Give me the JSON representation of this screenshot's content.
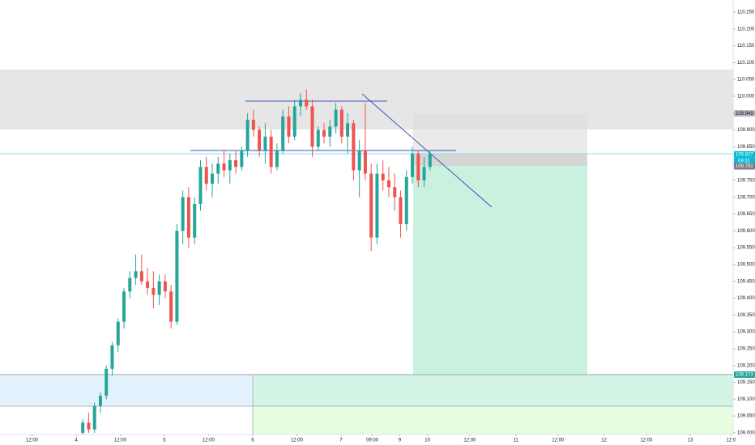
{
  "chart_data": {
    "type": "candlestick",
    "up_color": "#26a69a",
    "down_color": "#ef5350",
    "x": [
      1.8,
      3.4,
      5.0,
      6.6,
      8.2,
      9.8,
      11.4,
      13.0,
      14.6,
      16.2,
      17.8,
      19.4,
      21.0,
      22.6,
      24.2,
      25.8,
      27.4,
      29.0,
      30.6,
      32.2,
      33.8,
      35.4,
      37.0,
      38.6,
      40.2,
      41.8,
      43.4,
      45.0,
      46.6,
      48.2,
      49.8,
      51.4,
      53.0,
      54.6,
      56.2,
      57.8,
      59.4,
      61.0,
      62.6,
      64.2,
      65.8,
      67.4,
      69.0,
      70.6,
      72.2,
      73.8,
      75.4,
      77.0,
      78.6,
      80.2,
      81.8,
      83.4,
      85.0,
      86.6,
      88.2,
      89.8,
      91.4,
      93.0,
      94.6,
      96.2
    ],
    "open": [
      109.0,
      109.03,
      109.01,
      109.08,
      109.11,
      109.19,
      109.26,
      109.33,
      109.42,
      109.46,
      109.48,
      109.45,
      109.43,
      109.41,
      109.45,
      109.42,
      109.33,
      109.6,
      109.7,
      109.58,
      109.68,
      109.79,
      109.74,
      109.77,
      109.8,
      109.78,
      109.81,
      109.79,
      109.84,
      109.93,
      109.9,
      109.84,
      109.88,
      109.79,
      109.84,
      109.94,
      109.88,
      109.97,
      109.99,
      109.97,
      109.85,
      109.9,
      109.88,
      109.91,
      109.96,
      109.88,
      109.92,
      109.78,
      109.84,
      109.77,
      109.58,
      109.77,
      109.75,
      109.73,
      109.7,
      109.62,
      109.76,
      109.83,
      109.75,
      109.79
    ],
    "high": [
      109.04,
      109.06,
      109.09,
      109.12,
      109.2,
      109.27,
      109.34,
      109.43,
      109.48,
      109.53,
      109.53,
      109.49,
      109.48,
      109.47,
      109.47,
      109.44,
      109.62,
      109.72,
      109.73,
      109.7,
      109.81,
      109.82,
      109.8,
      109.82,
      109.84,
      109.83,
      109.84,
      109.85,
      109.95,
      109.96,
      109.91,
      109.92,
      109.9,
      109.86,
      109.96,
      109.97,
      109.99,
      110.01,
      110.02,
      109.99,
      109.91,
      109.92,
      109.93,
      109.98,
      109.97,
      109.95,
      109.93,
      109.87,
      109.98,
      109.8,
      109.8,
      109.81,
      109.79,
      109.77,
      109.72,
      109.78,
      109.85,
      109.84,
      109.82,
      109.84
    ],
    "low": [
      108.995,
      109.0,
      109.0,
      109.06,
      109.1,
      109.17,
      109.24,
      109.31,
      109.4,
      109.44,
      109.44,
      109.41,
      109.37,
      109.38,
      109.4,
      109.31,
      109.32,
      109.56,
      109.55,
      109.56,
      109.66,
      109.72,
      109.7,
      109.74,
      109.76,
      109.74,
      109.77,
      109.78,
      109.82,
      109.88,
      109.82,
      109.8,
      109.77,
      109.78,
      109.83,
      109.86,
      109.87,
      109.94,
      109.96,
      109.82,
      109.84,
      109.86,
      109.85,
      109.89,
      109.86,
      109.83,
      109.75,
      109.7,
      109.75,
      109.54,
      109.56,
      109.72,
      109.7,
      109.66,
      109.58,
      109.6,
      109.74,
      109.73,
      109.73,
      109.78
    ],
    "close": [
      109.03,
      109.01,
      109.08,
      109.11,
      109.19,
      109.26,
      109.33,
      109.42,
      109.46,
      109.48,
      109.45,
      109.43,
      109.41,
      109.45,
      109.42,
      109.33,
      109.6,
      109.7,
      109.58,
      109.68,
      109.79,
      109.74,
      109.77,
      109.8,
      109.78,
      109.81,
      109.79,
      109.84,
      109.93,
      109.9,
      109.84,
      109.88,
      109.79,
      109.84,
      109.94,
      109.88,
      109.97,
      109.99,
      109.97,
      109.85,
      109.9,
      109.88,
      109.91,
      109.96,
      109.88,
      109.92,
      109.78,
      109.84,
      109.77,
      109.58,
      109.77,
      109.75,
      109.73,
      109.7,
      109.62,
      109.76,
      109.83,
      109.75,
      109.79,
      109.83
    ],
    "xlim": [
      -20.7,
      178.6
    ],
    "xticks": [
      {
        "value": -12,
        "label": "12:00"
      },
      {
        "value": 0,
        "label": "4"
      },
      {
        "value": 12,
        "label": "12:00"
      },
      {
        "value": 24,
        "label": "5"
      },
      {
        "value": 36,
        "label": "12:00"
      },
      {
        "value": 48,
        "label": "6"
      },
      {
        "value": 60,
        "label": "12:00"
      },
      {
        "value": 72,
        "label": "7"
      },
      {
        "value": 80.5,
        "label": "09:00"
      },
      {
        "value": 88,
        "label": "9"
      },
      {
        "value": 95.5,
        "label": "10"
      },
      {
        "value": 107,
        "label": "12:00"
      },
      {
        "value": 119.5,
        "label": "11"
      },
      {
        "value": 131,
        "label": "12:00"
      },
      {
        "value": 143.5,
        "label": "12"
      },
      {
        "value": 155,
        "label": "12:00"
      },
      {
        "value": 167,
        "label": "13"
      },
      {
        "value": 178,
        "label": "12:0"
      }
    ],
    "ylim": [
      108.995,
      110.286
    ],
    "yticks": [
      {
        "value": 109.0,
        "label": "109.000"
      },
      {
        "value": 109.05,
        "label": "109.050"
      },
      {
        "value": 109.1,
        "label": "109.100"
      },
      {
        "value": 109.15,
        "label": "109.150"
      },
      {
        "value": 109.2,
        "label": "109.200"
      },
      {
        "value": 109.25,
        "label": "109.250"
      },
      {
        "value": 109.3,
        "label": "109.300"
      },
      {
        "value": 109.35,
        "label": "109.350"
      },
      {
        "value": 109.4,
        "label": "109.400"
      },
      {
        "value": 109.45,
        "label": "109.450"
      },
      {
        "value": 109.5,
        "label": "109.500"
      },
      {
        "value": 109.55,
        "label": "109.550"
      },
      {
        "value": 109.6,
        "label": "109.600"
      },
      {
        "value": 109.65,
        "label": "109.650"
      },
      {
        "value": 109.7,
        "label": "109.700"
      },
      {
        "value": 109.75,
        "label": "109.750"
      },
      {
        "value": 109.8,
        "label": "109.800"
      },
      {
        "value": 109.85,
        "label": "109.850"
      },
      {
        "value": 109.9,
        "label": "109.900"
      },
      {
        "value": 109.95,
        "label": "109.950"
      },
      {
        "value": 110.0,
        "label": "110.000"
      },
      {
        "value": 110.05,
        "label": "110.050"
      },
      {
        "value": 110.1,
        "label": "110.100"
      },
      {
        "value": 110.15,
        "label": "110.150"
      },
      {
        "value": 110.2,
        "label": "110.200"
      },
      {
        "value": 110.25,
        "label": "110.250"
      }
    ],
    "price_tags": [
      {
        "value": 109.949,
        "color": "#b2b5be",
        "text_color": "#131722"
      },
      {
        "value": 109.827,
        "color": "#00bcd4",
        "text_color": "#ffffff"
      },
      {
        "value": 109.792,
        "color": "#787b86",
        "text_color": "#ffffff"
      },
      {
        "value": 109.173,
        "color": "#26a69a",
        "text_color": "#ffffff"
      }
    ],
    "countdown": "09:31"
  }
}
